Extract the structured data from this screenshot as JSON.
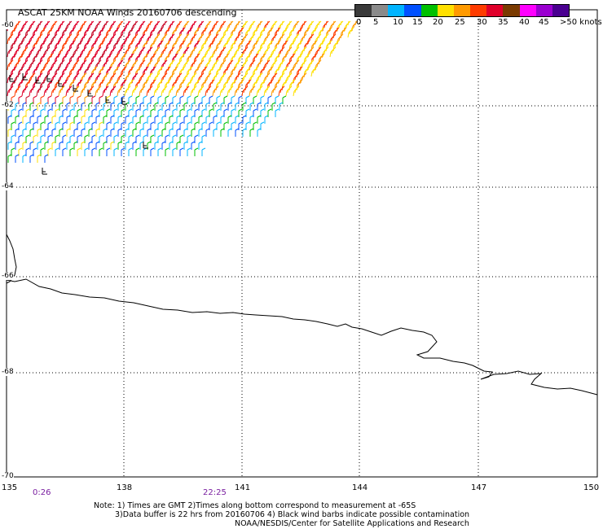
{
  "title": "ASCAT 25KM NOAA Winds 20160706 descending",
  "legend": {
    "colors": [
      "#3a3a3a",
      "#8a8a8a",
      "#00b4ff",
      "#0050ff",
      "#00c000",
      "#ffe000",
      "#ff9a00",
      "#ff3c00",
      "#e0002a",
      "#7a3a00",
      "#ff00ff",
      "#9a00d0",
      "#4a0090"
    ],
    "labels": [
      {
        "text": "0",
        "x": 437
      },
      {
        "text": "5",
        "x": 458
      },
      {
        "text": "10",
        "x": 482
      },
      {
        "text": "15",
        "x": 506
      },
      {
        "text": "20",
        "x": 531
      },
      {
        "text": "25",
        "x": 558
      },
      {
        "text": "30",
        "x": 585
      },
      {
        "text": "35",
        "x": 611
      },
      {
        "text": "40",
        "x": 637
      },
      {
        "text": "45",
        "x": 661
      },
      {
        "text": ">50 knots",
        "x": 687
      }
    ]
  },
  "lat_labels": [
    "-60",
    "-62",
    "-64",
    "-66",
    "-68",
    "-70"
  ],
  "lon_labels": [
    "135",
    "138",
    "141",
    "144",
    "147",
    "150"
  ],
  "time_labels": [
    "0:26",
    "22:25"
  ],
  "notes": [
    "Note: 1) Times are GMT 2)Times along bottom correspond to measurement at -65S",
    "3)Data buffer is 22 hrs from 20160706 4) Black wind barbs indicate possible contamination",
    "NOAA/NESDIS/Center for Satellite Applications and Research"
  ]
}
